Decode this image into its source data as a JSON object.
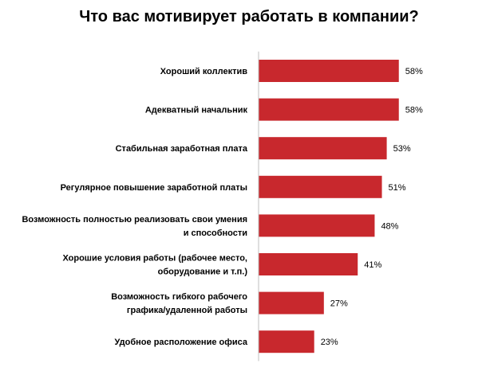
{
  "chart_data": {
    "type": "bar",
    "orientation": "horizontal",
    "title": "Что вас мотивирует работать в компании?",
    "categories": [
      [
        "Хороший коллектив"
      ],
      [
        "Адекватный начальник"
      ],
      [
        "Стабильная заработная плата"
      ],
      [
        "Регулярное повышение заработной платы"
      ],
      [
        "Возможность полностью реализовать свои умения",
        "и способности"
      ],
      [
        "Хорошие условия работы (рабочее место,",
        "оборудование и т.п.)"
      ],
      [
        "Возможность гибкого рабочего",
        "графика/удаленной работы"
      ],
      [
        "Удобное расположение офиса"
      ]
    ],
    "values": [
      58,
      58,
      53,
      51,
      48,
      41,
      27,
      23
    ],
    "data_labels": [
      "58%",
      "58%",
      "53%",
      "51%",
      "48%",
      "41%",
      "27%",
      "23%"
    ],
    "xlim": [
      0,
      100
    ],
    "bar_color": "#C8282D",
    "grid": false,
    "legend": "none"
  }
}
